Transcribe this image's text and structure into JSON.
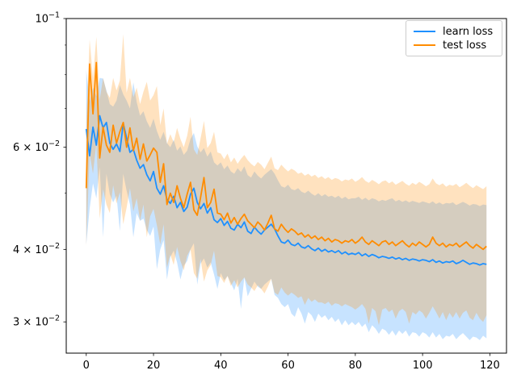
{
  "chart_data": {
    "type": "line",
    "title": "",
    "xlabel": "",
    "ylabel": "",
    "yscale": "log",
    "grid": false,
    "xlim": [
      -5.95,
      124.95
    ],
    "ylim": [
      0.0265,
      0.1
    ],
    "x_start": 0,
    "x_step": 1,
    "x_ticks": [
      0,
      20,
      40,
      60,
      80,
      100,
      120
    ],
    "y_ticks": [
      {
        "v": 0.1,
        "base": "10",
        "exp": "−1"
      },
      {
        "v": 0.06,
        "base": "6 × 10",
        "exp": "−2"
      },
      {
        "v": 0.04,
        "base": "4 × 10",
        "exp": "−2"
      },
      {
        "v": 0.03,
        "base": "3 × 10",
        "exp": "−2"
      }
    ],
    "y_minor_ticks": [
      0.09,
      0.08,
      0.07,
      0.05
    ],
    "legend": {
      "position": "upper right",
      "entries": [
        {
          "label": "learn loss",
          "color": "#1e90ff"
        },
        {
          "label": "test loss",
          "color": "#ff8c00"
        }
      ]
    },
    "band_alpha": 0.25,
    "series": [
      {
        "name": "learn loss",
        "color": "#1e90ff",
        "values": [
          0.0645,
          0.058,
          0.065,
          0.0605,
          0.068,
          0.0648,
          0.0662,
          0.061,
          0.0595,
          0.0608,
          0.059,
          0.066,
          0.0622,
          0.0588,
          0.0595,
          0.057,
          0.0552,
          0.056,
          0.0538,
          0.0525,
          0.0545,
          0.051,
          0.0498,
          0.0515,
          0.0488,
          0.048,
          0.0494,
          0.0472,
          0.0482,
          0.0465,
          0.0473,
          0.0498,
          0.051,
          0.0482,
          0.047,
          0.048,
          0.0462,
          0.0472,
          0.045,
          0.0445,
          0.0452,
          0.044,
          0.0447,
          0.0435,
          0.0432,
          0.0442,
          0.0436,
          0.0446,
          0.043,
          0.0426,
          0.0437,
          0.043,
          0.0425,
          0.0432,
          0.0437,
          0.0442,
          0.0434,
          0.0422,
          0.0412,
          0.041,
          0.0415,
          0.0408,
          0.0406,
          0.041,
          0.0404,
          0.0402,
          0.0406,
          0.0401,
          0.0398,
          0.0402,
          0.0397,
          0.04,
          0.0396,
          0.0398,
          0.0395,
          0.0398,
          0.0393,
          0.0396,
          0.0392,
          0.0394,
          0.0392,
          0.0395,
          0.039,
          0.0393,
          0.0389,
          0.0392,
          0.039,
          0.0387,
          0.0389,
          0.0388,
          0.0386,
          0.0388,
          0.0385,
          0.0387,
          0.0384,
          0.0386,
          0.0383,
          0.0385,
          0.0384,
          0.0382,
          0.0384,
          0.0383,
          0.0381,
          0.0384,
          0.038,
          0.0382,
          0.0379,
          0.0381,
          0.038,
          0.0382,
          0.0378,
          0.038,
          0.0383,
          0.038,
          0.0377,
          0.0379,
          0.0378,
          0.0376,
          0.0378,
          0.0377
        ],
        "band_upper": [
          0.0815,
          0.072,
          0.076,
          0.0735,
          0.079,
          0.0788,
          0.0752,
          0.0712,
          0.0705,
          0.0722,
          0.0768,
          0.074,
          0.0722,
          0.07,
          0.0776,
          0.0718,
          0.068,
          0.0692,
          0.0665,
          0.0648,
          0.0672,
          0.064,
          0.0618,
          0.0638,
          0.061,
          0.06,
          0.0618,
          0.0592,
          0.0602,
          0.0582,
          0.0592,
          0.062,
          0.0635,
          0.0602,
          0.0588,
          0.0598,
          0.0578,
          0.059,
          0.0565,
          0.0558,
          0.0565,
          0.055,
          0.0558,
          0.0545,
          0.054,
          0.0552,
          0.0544,
          0.0556,
          0.0537,
          0.0532,
          0.0545,
          0.0536,
          0.053,
          0.0538,
          0.0544,
          0.055,
          0.054,
          0.0526,
          0.0514,
          0.0511,
          0.0517,
          0.0508,
          0.0506,
          0.051,
          0.0503,
          0.05,
          0.0505,
          0.0499,
          0.0495,
          0.05,
          0.0494,
          0.0498,
          0.0493,
          0.0495,
          0.0491,
          0.0495,
          0.0489,
          0.0493,
          0.0488,
          0.049,
          0.049,
          0.0493,
          0.0487,
          0.0491,
          0.0486,
          0.049,
          0.0488,
          0.0484,
          0.0487,
          0.0485,
          0.0488,
          0.049,
          0.0484,
          0.0487,
          0.0483,
          0.0486,
          0.0482,
          0.0485,
          0.0483,
          0.0481,
          0.0484,
          0.0482,
          0.048,
          0.0484,
          0.0479,
          0.0482,
          0.0478,
          0.0481,
          0.048,
          0.0482,
          0.0477,
          0.048,
          0.0483,
          0.048,
          0.0476,
          0.0479,
          0.0478,
          0.0475,
          0.0478,
          0.0477
        ],
        "band_lower": [
          0.0408,
          0.047,
          0.052,
          0.049,
          0.0555,
          0.042,
          0.054,
          0.0498,
          0.0482,
          0.0495,
          0.043,
          0.054,
          0.0505,
          0.0478,
          0.042,
          0.0462,
          0.0448,
          0.0452,
          0.0432,
          0.0422,
          0.0438,
          0.037,
          0.04,
          0.0415,
          0.0355,
          0.0388,
          0.0398,
          0.038,
          0.0355,
          0.0375,
          0.0382,
          0.04,
          0.041,
          0.0348,
          0.0378,
          0.0386,
          0.0372,
          0.038,
          0.0362,
          0.0342,
          0.0364,
          0.0354,
          0.036,
          0.035,
          0.034,
          0.0356,
          0.0316,
          0.0358,
          0.0332,
          0.0342,
          0.0352,
          0.0345,
          0.0342,
          0.0348,
          0.0352,
          0.0356,
          0.0334,
          0.033,
          0.0322,
          0.0318,
          0.0322,
          0.031,
          0.0306,
          0.0318,
          0.031,
          0.0298,
          0.0312,
          0.0308,
          0.03,
          0.031,
          0.0305,
          0.0308,
          0.0302,
          0.0306,
          0.03,
          0.0304,
          0.0296,
          0.0302,
          0.0296,
          0.03,
          0.0296,
          0.03,
          0.0294,
          0.0298,
          0.0288,
          0.0296,
          0.0292,
          0.0286,
          0.0292,
          0.029,
          0.0285,
          0.029,
          0.0284,
          0.029,
          0.0286,
          0.029,
          0.0283,
          0.0288,
          0.0287,
          0.0283,
          0.0288,
          0.0286,
          0.0282,
          0.0288,
          0.0282,
          0.0286,
          0.028,
          0.0284,
          0.0283,
          0.0286,
          0.028,
          0.0284,
          0.0287,
          0.0283,
          0.0279,
          0.0283,
          0.0282,
          0.0279,
          0.0284,
          0.0281
        ]
      },
      {
        "name": "test loss",
        "color": "#ff8c00",
        "values": [
          0.051,
          0.0835,
          0.0685,
          0.084,
          0.0575,
          0.065,
          0.0605,
          0.0588,
          0.0655,
          0.061,
          0.0638,
          0.0662,
          0.06,
          0.0648,
          0.0592,
          0.0622,
          0.0572,
          0.0608,
          0.0568,
          0.0582,
          0.0598,
          0.0588,
          0.0522,
          0.0562,
          0.0478,
          0.05,
          0.0482,
          0.0515,
          0.049,
          0.0472,
          0.0498,
          0.0522,
          0.0468,
          0.0458,
          0.0492,
          0.0532,
          0.0472,
          0.0482,
          0.0508,
          0.0462,
          0.046,
          0.045,
          0.0462,
          0.0444,
          0.0454,
          0.0442,
          0.0452,
          0.046,
          0.0448,
          0.0442,
          0.0436,
          0.0446,
          0.044,
          0.0432,
          0.0444,
          0.0458,
          0.0434,
          0.043,
          0.0442,
          0.0434,
          0.0428,
          0.0434,
          0.043,
          0.0424,
          0.0427,
          0.042,
          0.0424,
          0.0418,
          0.0422,
          0.0416,
          0.042,
          0.0414,
          0.0418,
          0.0412,
          0.0416,
          0.0414,
          0.041,
          0.0414,
          0.0412,
          0.0416,
          0.041,
          0.0414,
          0.042,
          0.0412,
          0.0408,
          0.0414,
          0.041,
          0.0406,
          0.0412,
          0.0414,
          0.0408,
          0.0412,
          0.0406,
          0.041,
          0.0414,
          0.0408,
          0.0404,
          0.041,
          0.0406,
          0.0412,
          0.0408,
          0.0404,
          0.0408,
          0.042,
          0.041,
          0.0406,
          0.041,
          0.0404,
          0.0408,
          0.0406,
          0.041,
          0.0404,
          0.0408,
          0.0412,
          0.0406,
          0.0402,
          0.0408,
          0.0404,
          0.04,
          0.0405
        ],
        "band_upper": [
          0.066,
          0.092,
          0.079,
          0.093,
          0.0725,
          0.079,
          0.0748,
          0.073,
          0.079,
          0.0752,
          0.0782,
          0.094,
          0.0745,
          0.079,
          0.0732,
          0.076,
          0.0712,
          0.0748,
          0.0778,
          0.0722,
          0.0738,
          0.0765,
          0.0655,
          0.07,
          0.0608,
          0.0632,
          0.0612,
          0.0648,
          0.062,
          0.06,
          0.0628,
          0.0677,
          0.0595,
          0.0582,
          0.0622,
          0.0666,
          0.0598,
          0.061,
          0.0638,
          0.0588,
          0.0585,
          0.0572,
          0.0585,
          0.0565,
          0.0576,
          0.0562,
          0.0573,
          0.0582,
          0.057,
          0.0562,
          0.0556,
          0.0566,
          0.056,
          0.055,
          0.0564,
          0.0578,
          0.0552,
          0.0548,
          0.056,
          0.0552,
          0.0545,
          0.0551,
          0.0547,
          0.054,
          0.0543,
          0.0536,
          0.054,
          0.0534,
          0.0538,
          0.0531,
          0.0535,
          0.0529,
          0.0533,
          0.0527,
          0.0531,
          0.0529,
          0.0524,
          0.0528,
          0.0526,
          0.053,
          0.0523,
          0.0527,
          0.0533,
          0.0525,
          0.0521,
          0.0527,
          0.0523,
          0.0518,
          0.0524,
          0.0526,
          0.052,
          0.0524,
          0.0517,
          0.0521,
          0.0525,
          0.0519,
          0.0515,
          0.0521,
          0.0517,
          0.0523,
          0.0519,
          0.0514,
          0.0518,
          0.053,
          0.052,
          0.0516,
          0.052,
          0.0513,
          0.0517,
          0.0515,
          0.0519,
          0.0512,
          0.0516,
          0.0521,
          0.0515,
          0.051,
          0.0516,
          0.0512,
          0.0508,
          0.0514
        ],
        "band_lower": [
          0.0405,
          0.0585,
          0.054,
          0.061,
          0.0452,
          0.0508,
          0.0478,
          0.0462,
          0.0516,
          0.048,
          0.0502,
          0.0442,
          0.0472,
          0.051,
          0.0465,
          0.049,
          0.0448,
          0.0478,
          0.042,
          0.0456,
          0.047,
          0.044,
          0.0408,
          0.0442,
          0.0372,
          0.0392,
          0.0376,
          0.0404,
          0.0382,
          0.0368,
          0.039,
          0.04,
          0.0364,
          0.0356,
          0.0385,
          0.0352,
          0.0368,
          0.0376,
          0.0398,
          0.036,
          0.0358,
          0.035,
          0.036,
          0.0346,
          0.0354,
          0.0344,
          0.0352,
          0.0358,
          0.0348,
          0.0344,
          0.0339,
          0.0347,
          0.0342,
          0.0336,
          0.0345,
          0.0356,
          0.0337,
          0.0334,
          0.0344,
          0.0337,
          0.0333,
          0.0337,
          0.0334,
          0.033,
          0.0332,
          0.0321,
          0.033,
          0.0325,
          0.0328,
          0.0324,
          0.0324,
          0.0322,
          0.0325,
          0.032,
          0.0323,
          0.0322,
          0.0319,
          0.0322,
          0.032,
          0.0318,
          0.0315,
          0.0318,
          0.0322,
          0.0316,
          0.0298,
          0.0317,
          0.0313,
          0.0296,
          0.0315,
          0.0317,
          0.0312,
          0.0315,
          0.0304,
          0.0313,
          0.0316,
          0.0312,
          0.0298,
          0.0312,
          0.0309,
          0.0314,
          0.0311,
          0.0304,
          0.0311,
          0.0319,
          0.0312,
          0.0304,
          0.0312,
          0.0302,
          0.0311,
          0.0305,
          0.0312,
          0.0304,
          0.0311,
          0.0314,
          0.0305,
          0.0302,
          0.0311,
          0.0304,
          0.03,
          0.0308
        ]
      }
    ]
  }
}
